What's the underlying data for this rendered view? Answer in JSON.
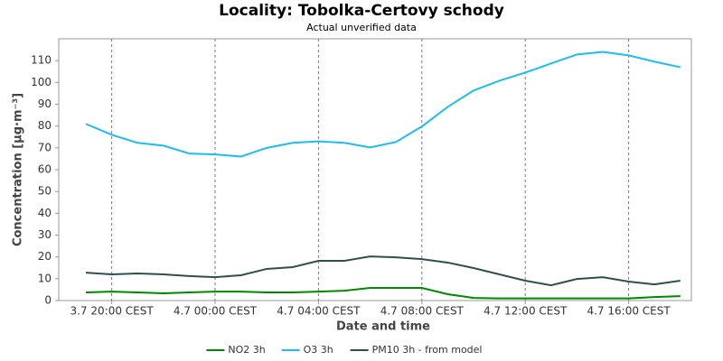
{
  "chart_data": {
    "type": "line",
    "title": "Locality: Tobolka-Certovy schody",
    "subtitle": "Actual unverified data",
    "x_label": "Date and time",
    "y_label": "Concentration [µg·m⁻³]",
    "categories": [
      null,
      "3.7 20:00 CEST",
      null,
      null,
      null,
      "4.7 00:00 CEST",
      null,
      null,
      null,
      "4.7 04:00 CEST",
      null,
      null,
      null,
      "4.7 08:00 CEST",
      null,
      null,
      null,
      "4.7 12:00 CEST",
      null,
      null,
      null,
      "4.7 16:00 CEST",
      null,
      null
    ],
    "series": [
      {
        "name": "NO2 3h",
        "color": "#008800",
        "values": [
          3.7,
          4.1,
          3.7,
          3.3,
          3.7,
          4.1,
          4.1,
          3.7,
          3.7,
          4.1,
          4.5,
          5.8,
          5.8,
          5.8,
          2.9,
          1.2,
          1.0,
          1.0,
          1.0,
          1.0,
          1.0,
          1.0,
          1.6,
          2.0
        ]
      },
      {
        "name": "O3 3h",
        "color": "#1ebcf0",
        "values": [
          81,
          76,
          72.3,
          71,
          67.4,
          67,
          66,
          70,
          72.3,
          73,
          72.3,
          70.2,
          72.7,
          79.8,
          88.8,
          96.3,
          100.8,
          104.5,
          108.7,
          112.8,
          114,
          112.4,
          109.5,
          107
        ]
      },
      {
        "name": "PM10 3h - from model",
        "color": "#2f4f4f",
        "values": [
          12.8,
          12,
          12.4,
          12,
          11.2,
          10.7,
          11.6,
          14.5,
          15.3,
          18.2,
          18.2,
          20.2,
          19.8,
          19,
          17.4,
          14.9,
          12,
          9.1,
          7,
          9.9,
          10.7,
          8.7,
          7.4,
          9.1
        ]
      }
    ],
    "ylim": [
      0,
      120
    ],
    "yticks": [
      0,
      10,
      20,
      30,
      40,
      50,
      60,
      70,
      80,
      90,
      100,
      110
    ],
    "grid": true,
    "legend": "bottom"
  }
}
